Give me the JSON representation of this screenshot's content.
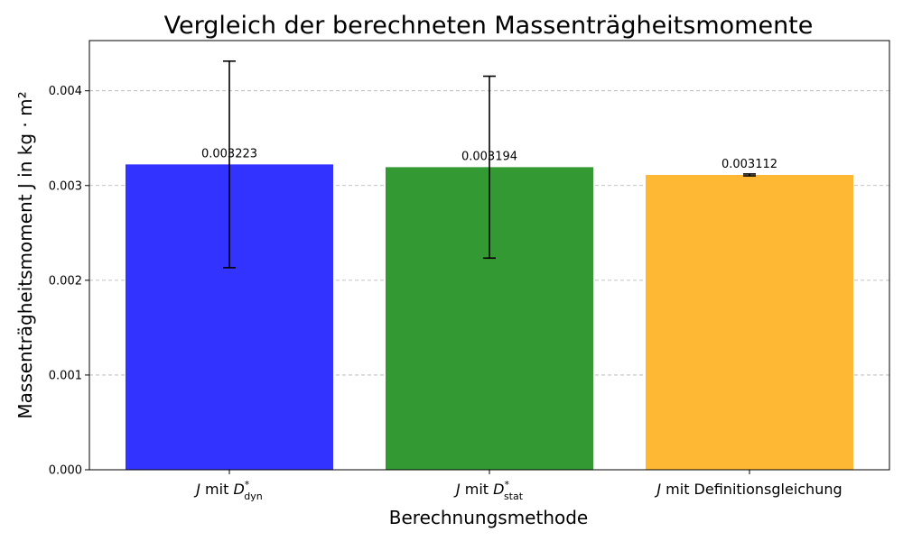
{
  "chart_data": {
    "type": "bar",
    "title": "Vergleich der berechneten Massenträgheitsmomente",
    "xlabel": "Berechnungsmethode",
    "ylabel": "Massenträgheitsmoment J in kg · m²",
    "ylim": [
      0,
      0.00453
    ],
    "yticks": [
      0.0,
      0.001,
      0.002,
      0.003,
      0.004
    ],
    "ytick_labels": [
      "0.000",
      "0.001",
      "0.002",
      "0.003",
      "0.004"
    ],
    "grid": "y-dashed",
    "categories": [
      {
        "main": "J mit D",
        "sup": "*",
        "sub": "dyn"
      },
      {
        "main": "J mit D",
        "sup": "*",
        "sub": "stat"
      },
      {
        "main": "J mit Definitionsgleichung",
        "sup": "",
        "sub": ""
      }
    ],
    "values": [
      0.003223,
      0.003194,
      0.003112
    ],
    "value_labels": [
      "0.003223",
      "0.003194",
      "0.003112"
    ],
    "errors": [
      0.00109,
      0.00096,
      1e-05
    ],
    "colors": [
      "#3333ff",
      "#339933",
      "#ffb833"
    ]
  }
}
